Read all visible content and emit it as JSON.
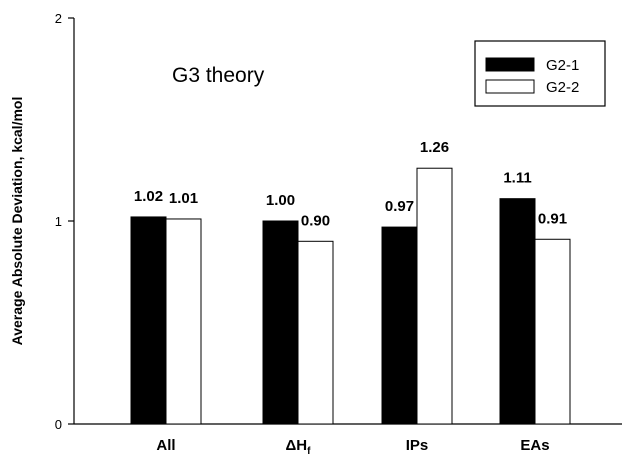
{
  "chart_data": {
    "type": "bar",
    "title": "",
    "annotation": "G3 theory",
    "ylabel": "Average Absolute Deviation, kcal/mol",
    "xlabel": "",
    "ylim": [
      0,
      2
    ],
    "yticks": [
      "0",
      "1",
      "2"
    ],
    "categories": [
      "All",
      "ΔH_f",
      "IPs",
      "EAs"
    ],
    "category_display": [
      {
        "main": "All",
        "sub": ""
      },
      {
        "main": "ΔH",
        "sub": "f"
      },
      {
        "main": "IPs",
        "sub": ""
      },
      {
        "main": "EAs",
        "sub": ""
      }
    ],
    "series": [
      {
        "name": "G2-1",
        "color": "#000000",
        "values": [
          1.02,
          1.0,
          0.97,
          1.11
        ],
        "labels": [
          "1.02",
          "1.00",
          "0.97",
          "1.11"
        ]
      },
      {
        "name": "G2-2",
        "color": "#ffffff",
        "values": [
          1.01,
          0.9,
          1.26,
          0.91
        ],
        "labels": [
          "1.01",
          "0.90",
          "1.26",
          "0.91"
        ]
      }
    ],
    "legend_position": "top-right",
    "grid": false
  }
}
